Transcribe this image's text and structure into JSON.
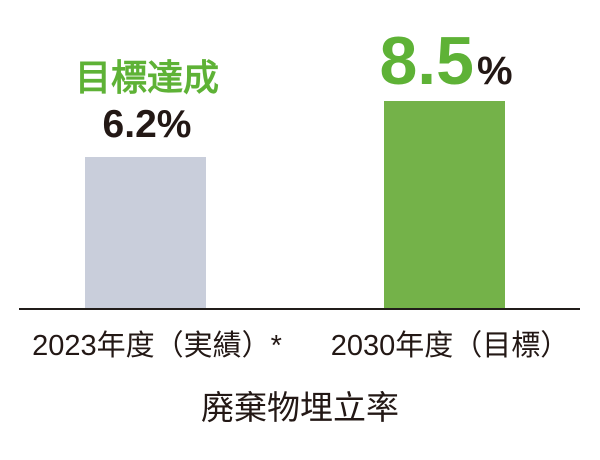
{
  "chart_data": {
    "type": "bar",
    "title": "廃棄物埋立率",
    "categories": [
      "2023年度（実績）*",
      "2030年度（目標）"
    ],
    "values": [
      6.2,
      8.5
    ],
    "unit": "%",
    "ylim": [
      0,
      8.5
    ],
    "grid": false,
    "legend": "none",
    "bars": [
      {
        "category": "2023年度（実績）*",
        "value": 6.2,
        "value_label": "6.2%",
        "annotation": "目標達成",
        "color": "#c9cedb",
        "value_label_color": "#231815"
      },
      {
        "category": "2030年度（目標）",
        "value": 8.5,
        "value_label": "8.5",
        "unit_label": "%",
        "color": "#74b249",
        "value_label_color": "#5eb236"
      }
    ]
  },
  "colors": {
    "background": "#ffffff",
    "bar_gray": "#c9cedb",
    "bar_green": "#74b249",
    "accent_green_text": "#5eb236",
    "text_black": "#231815",
    "axis_line": "#211d1a"
  }
}
